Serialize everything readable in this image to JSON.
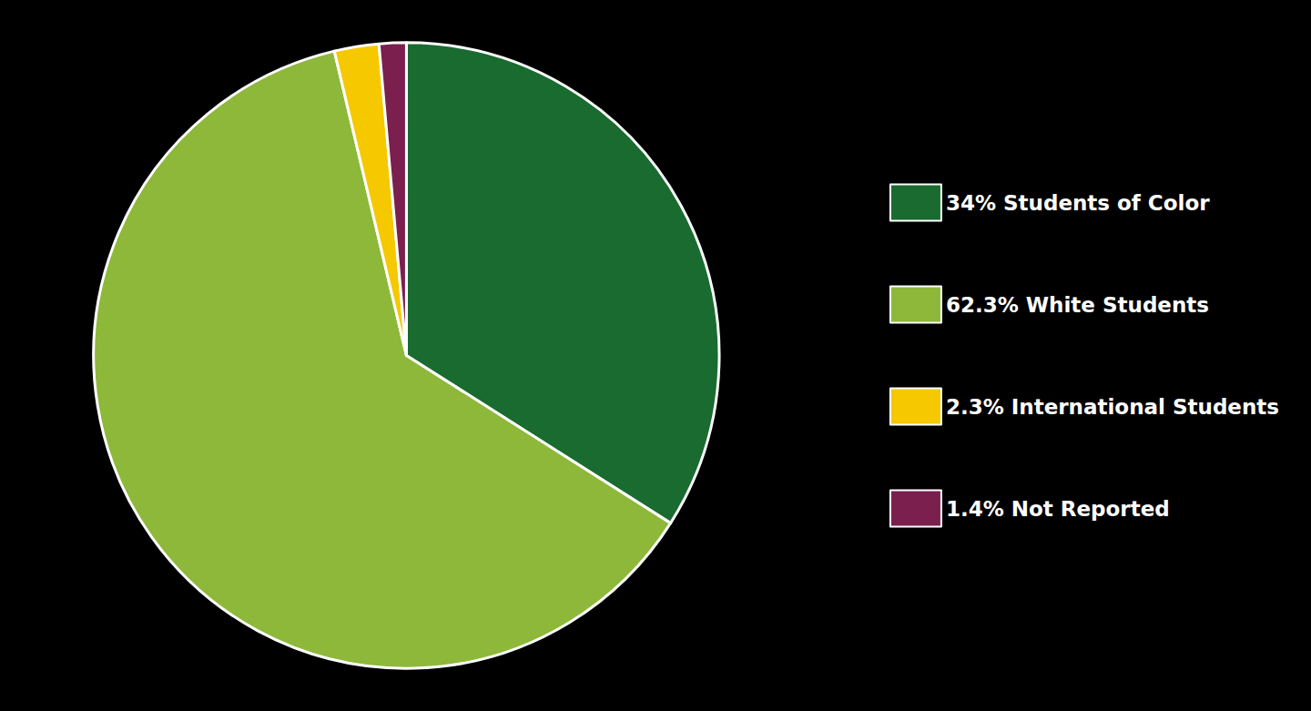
{
  "chart_data": {
    "type": "pie",
    "categories": [
      "34% Students of Color",
      "62.3% White Students",
      "2.3% International Students",
      "1.4% Not Reported"
    ],
    "values": [
      34.0,
      62.3,
      2.3,
      1.4
    ],
    "colors": [
      "#1a6b2f",
      "#8db83a",
      "#f5c800",
      "#7a1f4e"
    ],
    "legend": "right"
  }
}
